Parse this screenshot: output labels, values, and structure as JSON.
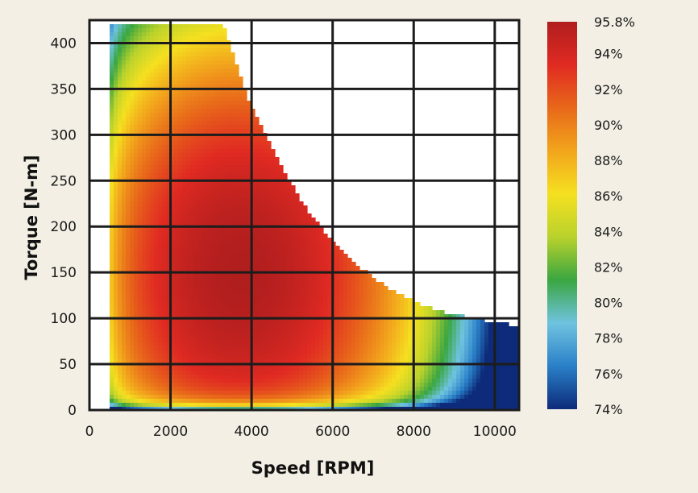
{
  "chart_data": {
    "type": "heatmap",
    "title": "",
    "xlabel": "Speed [RPM]",
    "ylabel": "Torque [N-m]",
    "xlim": [
      0,
      10600
    ],
    "ylim": [
      0,
      425
    ],
    "x_ticks": [
      "0",
      "2000",
      "4000",
      "6000",
      "8000",
      "10000"
    ],
    "x_tick_values": [
      0,
      2000,
      4000,
      6000,
      8000,
      10000
    ],
    "y_ticks": [
      "0",
      "50",
      "100",
      "150",
      "200",
      "250",
      "300",
      "350",
      "400"
    ],
    "y_tick_values": [
      0,
      50,
      100,
      150,
      200,
      250,
      300,
      350,
      400
    ],
    "grid": true,
    "colorbar": {
      "labels": [
        "95.8%",
        "94%",
        "92%",
        "90%",
        "88%",
        "86%",
        "84%",
        "82%",
        "80%",
        "78%",
        "76%",
        "74%"
      ],
      "values": [
        95.8,
        94,
        92,
        90,
        88,
        86,
        84,
        82,
        80,
        78,
        76,
        74
      ],
      "range": [
        74,
        95.8
      ],
      "colors_low_to_high": [
        "#0d2b7a",
        "#2a80c8",
        "#6fc3e0",
        "#3aa641",
        "#b9d22c",
        "#f5e020",
        "#f2a51c",
        "#e8681a",
        "#e02a22",
        "#b01e1e"
      ]
    },
    "torque_envelope": {
      "speed": [
        800,
        1000,
        2000,
        3300,
        3600,
        4000,
        4500,
        5000,
        5500,
        6000,
        6500,
        7000,
        7500,
        8000,
        8500,
        9000,
        9500,
        10000,
        10600
      ],
      "torque": [
        420,
        420,
        420,
        420,
        380,
        330,
        285,
        245,
        210,
        185,
        162,
        145,
        130,
        118,
        110,
        104,
        100,
        96,
        92
      ]
    },
    "peak_efficiency": 95.8
  }
}
